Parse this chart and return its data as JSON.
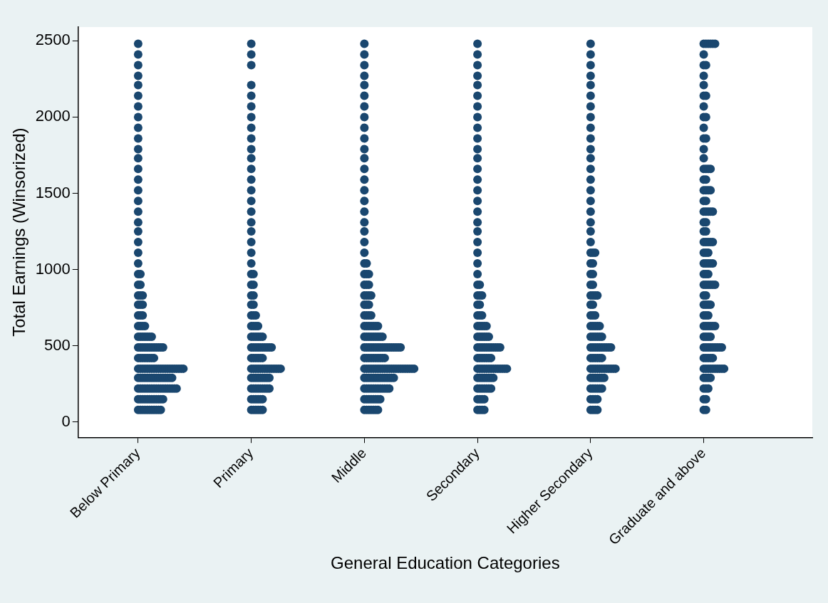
{
  "chart_data": {
    "type": "scatter",
    "xlabel": "General Education Categories",
    "ylabel": "Total Earnings (Winsorized)",
    "categories": [
      "Below Primary",
      "Primary",
      "Middle",
      "Secondary",
      "Higher Secondary",
      "Graduate and above"
    ],
    "ylim": [
      -100,
      2590
    ],
    "yticks": [
      0,
      500,
      1000,
      1500,
      2000,
      2500
    ],
    "marker": "circle",
    "series": [
      {
        "color": "#1a476f",
        "x": [
          "Below Primary",
          "Below Primary",
          "Below Primary",
          "Below Primary",
          "Below Primary",
          "Below Primary",
          "Below Primary",
          "Below Primary",
          "Below Primary",
          "Below Primary",
          "Below Primary",
          "Below Primary",
          "Below Primary",
          "Below Primary",
          "Below Primary",
          "Below Primary",
          "Below Primary",
          "Below Primary",
          "Below Primary",
          "Below Primary",
          "Below Primary",
          "Below Primary",
          "Below Primary",
          "Below Primary",
          "Below Primary",
          "Below Primary",
          "Below Primary",
          "Below Primary",
          "Below Primary",
          "Below Primary",
          "Below Primary",
          "Below Primary",
          "Below Primary",
          "Below Primary",
          "Below Primary",
          "Below Primary",
          "Below Primary",
          "Below Primary",
          "Below Primary",
          "Below Primary",
          "Below Primary",
          "Below Primary",
          "Below Primary",
          "Below Primary",
          "Below Primary",
          "Below Primary",
          "Below Primary",
          "Below Primary",
          "Below Primary",
          "Below Primary",
          "Below Primary",
          "Below Primary",
          "Below Primary",
          "Below Primary",
          "Below Primary",
          "Below Primary",
          "Below Primary",
          "Below Primary",
          "Below Primary",
          "Below Primary",
          "Below Primary",
          "Below Primary",
          "Below Primary",
          "Below Primary",
          "Below Primary",
          "Below Primary",
          "Below Primary",
          "Below Primary",
          "Below Primary",
          "Below Primary",
          "Below Primary",
          "Below Primary",
          "Below Primary",
          "Below Primary",
          "Below Primary",
          "Below Primary",
          "Below Primary",
          "Below Primary",
          "Below Primary",
          "Below Primary",
          "Below Primary",
          "Below Primary",
          "Below Primary",
          "Below Primary",
          "Below Primary",
          "Below Primary",
          "Below Primary",
          "Below Primary",
          "Below Primary",
          "Below Primary",
          "Below Primary",
          "Below Primary",
          "Below Primary",
          "Below Primary",
          "Below Primary",
          "Below Primary",
          "Below Primary",
          "Below Primary",
          "Below Primary",
          "Below Primary",
          "Below Primary",
          "Below Primary",
          "Below Primary",
          "Below Primary",
          "Below Primary",
          "Below Primary",
          "Below Primary",
          "Below Primary",
          "Below Primary",
          "Below Primary",
          "Below Primary",
          "Below Primary",
          "Below Primary",
          "Below Primary",
          "Below Primary",
          "Below Primary",
          "Below Primary",
          "Below Primary",
          "Below Primary",
          "Below Primary",
          "Below Primary",
          "Below Primary",
          "Below Primary",
          "Below Primary",
          "Below Primary",
          "Below Primary",
          "Below Primary",
          "Below Primary",
          "Below Primary",
          "Below Primary",
          "Below Primary",
          "Below Primary",
          "Below Primary",
          "Below Primary",
          "Below Primary",
          "Below Primary",
          "Below Primary",
          "Below Primary",
          "Below Primary",
          "Below Primary",
          "Below Primary",
          "Below Primary",
          "Below Primary",
          "Below Primary"
        ],
        "values": [
          80,
          80,
          80,
          80,
          80,
          80,
          80,
          80,
          80,
          80,
          80,
          150,
          150,
          150,
          150,
          150,
          150,
          150,
          150,
          150,
          150,
          150,
          150,
          220,
          220,
          220,
          220,
          220,
          220,
          220,
          220,
          220,
          220,
          220,
          220,
          220,
          220,
          220,
          220,
          220,
          220,
          290,
          290,
          290,
          290,
          290,
          290,
          290,
          290,
          290,
          290,
          290,
          290,
          290,
          290,
          290,
          290,
          350,
          350,
          350,
          350,
          350,
          350,
          350,
          350,
          350,
          350,
          350,
          350,
          350,
          350,
          350,
          350,
          350,
          350,
          350,
          350,
          350,
          420,
          420,
          420,
          420,
          420,
          420,
          420,
          420,
          490,
          490,
          490,
          490,
          490,
          490,
          490,
          490,
          490,
          490,
          490,
          490,
          560,
          560,
          560,
          560,
          560,
          560,
          560,
          630,
          630,
          630,
          630,
          700,
          700,
          700,
          770,
          770,
          770,
          830,
          830,
          830,
          900,
          900,
          970,
          970,
          1040,
          1110,
          1180,
          1250,
          1310,
          1380,
          1450,
          1520,
          1590,
          1660,
          1730,
          1790,
          1860,
          1930,
          2000,
          2070,
          2140,
          2210,
          2270,
          2340,
          2410,
          2480
        ]
      },
      {
        "color": "#1a476f",
        "x": [
          "Primary",
          "Primary",
          "Primary",
          "Primary",
          "Primary",
          "Primary",
          "Primary",
          "Primary",
          "Primary",
          "Primary",
          "Primary",
          "Primary",
          "Primary",
          "Primary",
          "Primary",
          "Primary",
          "Primary",
          "Primary",
          "Primary",
          "Primary",
          "Primary",
          "Primary",
          "Primary",
          "Primary",
          "Primary",
          "Primary",
          "Primary",
          "Primary",
          "Primary",
          "Primary",
          "Primary",
          "Primary",
          "Primary",
          "Primary",
          "Primary",
          "Primary",
          "Primary",
          "Primary",
          "Primary",
          "Primary",
          "Primary",
          "Primary",
          "Primary",
          "Primary",
          "Primary",
          "Primary",
          "Primary",
          "Primary",
          "Primary",
          "Primary",
          "Primary",
          "Primary",
          "Primary",
          "Primary",
          "Primary",
          "Primary",
          "Primary",
          "Primary",
          "Primary",
          "Primary",
          "Primary",
          "Primary",
          "Primary",
          "Primary",
          "Primary",
          "Primary",
          "Primary",
          "Primary",
          "Primary",
          "Primary",
          "Primary",
          "Primary",
          "Primary",
          "Primary",
          "Primary",
          "Primary",
          "Primary",
          "Primary",
          "Primary",
          "Primary",
          "Primary",
          "Primary",
          "Primary",
          "Primary",
          "Primary",
          "Primary",
          "Primary",
          "Primary",
          "Primary",
          "Primary",
          "Primary",
          "Primary",
          "Primary",
          "Primary",
          "Primary",
          "Primary",
          "Primary",
          "Primary",
          "Primary",
          "Primary",
          "Primary",
          "Primary"
        ],
        "values": [
          80,
          80,
          80,
          80,
          80,
          80,
          150,
          150,
          150,
          150,
          150,
          150,
          220,
          220,
          220,
          220,
          220,
          220,
          220,
          220,
          220,
          290,
          290,
          290,
          290,
          290,
          290,
          290,
          290,
          290,
          350,
          350,
          350,
          350,
          350,
          350,
          350,
          350,
          350,
          350,
          350,
          350,
          350,
          350,
          420,
          420,
          420,
          420,
          420,
          420,
          490,
          490,
          490,
          490,
          490,
          490,
          490,
          490,
          490,
          490,
          560,
          560,
          560,
          560,
          560,
          560,
          630,
          630,
          630,
          630,
          700,
          700,
          700,
          770,
          770,
          830,
          830,
          900,
          900,
          970,
          970,
          1040,
          1110,
          1180,
          1250,
          1310,
          1380,
          1450,
          1520,
          1590,
          1660,
          1730,
          1790,
          1860,
          1930,
          2000,
          2070,
          2140,
          2210,
          2340,
          2410,
          2480
        ]
      },
      {
        "color": "#1a476f",
        "x": [
          "Middle",
          "Middle",
          "Middle",
          "Middle",
          "Middle",
          "Middle",
          "Middle",
          "Middle",
          "Middle",
          "Middle",
          "Middle",
          "Middle",
          "Middle",
          "Middle",
          "Middle",
          "Middle",
          "Middle",
          "Middle",
          "Middle",
          "Middle",
          "Middle",
          "Middle",
          "Middle",
          "Middle",
          "Middle",
          "Middle",
          "Middle",
          "Middle",
          "Middle",
          "Middle",
          "Middle",
          "Middle",
          "Middle",
          "Middle",
          "Middle",
          "Middle",
          "Middle",
          "Middle",
          "Middle",
          "Middle",
          "Middle",
          "Middle",
          "Middle",
          "Middle",
          "Middle",
          "Middle",
          "Middle",
          "Middle",
          "Middle",
          "Middle",
          "Middle",
          "Middle",
          "Middle",
          "Middle",
          "Middle",
          "Middle",
          "Middle",
          "Middle",
          "Middle",
          "Middle",
          "Middle",
          "Middle",
          "Middle",
          "Middle",
          "Middle",
          "Middle",
          "Middle",
          "Middle",
          "Middle",
          "Middle",
          "Middle",
          "Middle",
          "Middle",
          "Middle",
          "Middle",
          "Middle",
          "Middle",
          "Middle",
          "Middle",
          "Middle",
          "Middle",
          "Middle",
          "Middle",
          "Middle",
          "Middle",
          "Middle",
          "Middle",
          "Middle",
          "Middle",
          "Middle",
          "Middle",
          "Middle",
          "Middle",
          "Middle",
          "Middle",
          "Middle",
          "Middle",
          "Middle",
          "Middle",
          "Middle",
          "Middle",
          "Middle",
          "Middle",
          "Middle",
          "Middle",
          "Middle",
          "Middle",
          "Middle",
          "Middle",
          "Middle",
          "Middle",
          "Middle",
          "Middle",
          "Middle",
          "Middle",
          "Middle",
          "Middle",
          "Middle",
          "Middle",
          "Middle",
          "Middle",
          "Middle",
          "Middle",
          "Middle",
          "Middle",
          "Middle",
          "Middle",
          "Middle",
          "Middle",
          "Middle",
          "Middle",
          "Middle",
          "Middle",
          "Middle",
          "Middle",
          "Middle",
          "Middle",
          "Middle",
          "Middle",
          "Middle",
          "Middle",
          "Middle",
          "Middle",
          "Middle",
          "Middle",
          "Middle",
          "Middle"
        ],
        "values": [
          80,
          80,
          80,
          80,
          80,
          80,
          80,
          150,
          150,
          150,
          150,
          150,
          150,
          150,
          150,
          220,
          220,
          220,
          220,
          220,
          220,
          220,
          220,
          220,
          220,
          220,
          220,
          290,
          290,
          290,
          290,
          290,
          290,
          290,
          290,
          290,
          290,
          290,
          290,
          290,
          290,
          350,
          350,
          350,
          350,
          350,
          350,
          350,
          350,
          350,
          350,
          350,
          350,
          350,
          350,
          350,
          350,
          350,
          350,
          350,
          350,
          350,
          350,
          350,
          420,
          420,
          420,
          420,
          420,
          420,
          420,
          420,
          420,
          420,
          490,
          490,
          490,
          490,
          490,
          490,
          490,
          490,
          490,
          490,
          490,
          490,
          490,
          490,
          490,
          490,
          490,
          560,
          560,
          560,
          560,
          560,
          560,
          560,
          560,
          560,
          630,
          630,
          630,
          630,
          630,
          630,
          630,
          700,
          700,
          700,
          700,
          770,
          770,
          770,
          830,
          830,
          830,
          830,
          900,
          900,
          900,
          970,
          970,
          970,
          1040,
          1040,
          1110,
          1180,
          1250,
          1310,
          1380,
          1450,
          1520,
          1590,
          1660,
          1730,
          1790,
          1860,
          1930,
          2000,
          2070,
          2140,
          2210,
          2270,
          2340,
          2410,
          2480
        ]
      },
      {
        "color": "#1a476f",
        "x": [
          "Secondary",
          "Secondary",
          "Secondary",
          "Secondary",
          "Secondary",
          "Secondary",
          "Secondary",
          "Secondary",
          "Secondary",
          "Secondary",
          "Secondary",
          "Secondary",
          "Secondary",
          "Secondary",
          "Secondary",
          "Secondary",
          "Secondary",
          "Secondary",
          "Secondary",
          "Secondary",
          "Secondary",
          "Secondary",
          "Secondary",
          "Secondary",
          "Secondary",
          "Secondary",
          "Secondary",
          "Secondary",
          "Secondary",
          "Secondary",
          "Secondary",
          "Secondary",
          "Secondary",
          "Secondary",
          "Secondary",
          "Secondary",
          "Secondary",
          "Secondary",
          "Secondary",
          "Secondary",
          "Secondary",
          "Secondary",
          "Secondary",
          "Secondary",
          "Secondary",
          "Secondary",
          "Secondary",
          "Secondary",
          "Secondary",
          "Secondary",
          "Secondary",
          "Secondary",
          "Secondary",
          "Secondary",
          "Secondary",
          "Secondary",
          "Secondary",
          "Secondary",
          "Secondary",
          "Secondary",
          "Secondary",
          "Secondary",
          "Secondary",
          "Secondary",
          "Secondary",
          "Secondary",
          "Secondary",
          "Secondary",
          "Secondary",
          "Secondary",
          "Secondary",
          "Secondary",
          "Secondary",
          "Secondary",
          "Secondary",
          "Secondary",
          "Secondary",
          "Secondary",
          "Secondary",
          "Secondary",
          "Secondary",
          "Secondary",
          "Secondary",
          "Secondary",
          "Secondary",
          "Secondary",
          "Secondary",
          "Secondary",
          "Secondary",
          "Secondary",
          "Secondary",
          "Secondary",
          "Secondary",
          "Secondary",
          "Secondary",
          "Secondary",
          "Secondary",
          "Secondary",
          "Secondary"
        ],
        "values": [
          80,
          80,
          80,
          80,
          150,
          150,
          150,
          150,
          220,
          220,
          220,
          220,
          220,
          220,
          220,
          290,
          290,
          290,
          290,
          290,
          290,
          290,
          290,
          350,
          350,
          350,
          350,
          350,
          350,
          350,
          350,
          350,
          350,
          350,
          350,
          350,
          350,
          420,
          420,
          420,
          420,
          420,
          420,
          420,
          490,
          490,
          490,
          490,
          490,
          490,
          490,
          490,
          490,
          490,
          490,
          560,
          560,
          560,
          560,
          560,
          560,
          630,
          630,
          630,
          630,
          630,
          700,
          700,
          700,
          770,
          770,
          830,
          830,
          830,
          900,
          900,
          970,
          1040,
          1110,
          1180,
          1250,
          1310,
          1380,
          1450,
          1520,
          1590,
          1660,
          1730,
          1790,
          1860,
          1930,
          2000,
          2070,
          2140,
          2210,
          2270,
          2340,
          2410,
          2480
        ]
      },
      {
        "color": "#1a476f",
        "x": [
          "Higher Secondary",
          "Higher Secondary",
          "Higher Secondary",
          "Higher Secondary",
          "Higher Secondary",
          "Higher Secondary",
          "Higher Secondary",
          "Higher Secondary",
          "Higher Secondary",
          "Higher Secondary",
          "Higher Secondary",
          "Higher Secondary",
          "Higher Secondary",
          "Higher Secondary",
          "Higher Secondary",
          "Higher Secondary",
          "Higher Secondary",
          "Higher Secondary",
          "Higher Secondary",
          "Higher Secondary",
          "Higher Secondary",
          "Higher Secondary",
          "Higher Secondary",
          "Higher Secondary",
          "Higher Secondary",
          "Higher Secondary",
          "Higher Secondary",
          "Higher Secondary",
          "Higher Secondary",
          "Higher Secondary",
          "Higher Secondary",
          "Higher Secondary",
          "Higher Secondary",
          "Higher Secondary",
          "Higher Secondary",
          "Higher Secondary",
          "Higher Secondary",
          "Higher Secondary",
          "Higher Secondary",
          "Higher Secondary",
          "Higher Secondary",
          "Higher Secondary",
          "Higher Secondary",
          "Higher Secondary",
          "Higher Secondary",
          "Higher Secondary",
          "Higher Secondary",
          "Higher Secondary",
          "Higher Secondary",
          "Higher Secondary",
          "Higher Secondary",
          "Higher Secondary",
          "Higher Secondary",
          "Higher Secondary",
          "Higher Secondary",
          "Higher Secondary",
          "Higher Secondary",
          "Higher Secondary",
          "Higher Secondary",
          "Higher Secondary",
          "Higher Secondary",
          "Higher Secondary",
          "Higher Secondary",
          "Higher Secondary",
          "Higher Secondary",
          "Higher Secondary",
          "Higher Secondary",
          "Higher Secondary",
          "Higher Secondary",
          "Higher Secondary",
          "Higher Secondary",
          "Higher Secondary",
          "Higher Secondary",
          "Higher Secondary",
          "Higher Secondary",
          "Higher Secondary",
          "Higher Secondary",
          "Higher Secondary",
          "Higher Secondary",
          "Higher Secondary",
          "Higher Secondary",
          "Higher Secondary",
          "Higher Secondary",
          "Higher Secondary",
          "Higher Secondary",
          "Higher Secondary",
          "Higher Secondary",
          "Higher Secondary",
          "Higher Secondary",
          "Higher Secondary",
          "Higher Secondary",
          "Higher Secondary",
          "Higher Secondary",
          "Higher Secondary",
          "Higher Secondary",
          "Higher Secondary",
          "Higher Secondary",
          "Higher Secondary"
        ],
        "values": [
          80,
          80,
          80,
          80,
          150,
          150,
          150,
          150,
          220,
          220,
          220,
          220,
          220,
          220,
          290,
          290,
          290,
          290,
          290,
          290,
          290,
          350,
          350,
          350,
          350,
          350,
          350,
          350,
          350,
          350,
          350,
          350,
          350,
          420,
          420,
          420,
          420,
          420,
          420,
          490,
          490,
          490,
          490,
          490,
          490,
          490,
          490,
          490,
          490,
          560,
          560,
          560,
          560,
          560,
          560,
          630,
          630,
          630,
          630,
          630,
          700,
          700,
          700,
          770,
          770,
          830,
          830,
          830,
          830,
          900,
          900,
          970,
          970,
          1040,
          1040,
          1110,
          1110,
          1110,
          1180,
          1250,
          1310,
          1380,
          1450,
          1520,
          1590,
          1660,
          1730,
          1790,
          1860,
          1930,
          2000,
          2070,
          2140,
          2210,
          2270,
          2340,
          2410,
          2480
        ]
      },
      {
        "color": "#1a476f",
        "x": [
          "Graduate and above",
          "Graduate and above",
          "Graduate and above",
          "Graduate and above",
          "Graduate and above",
          "Graduate and above",
          "Graduate and above",
          "Graduate and above",
          "Graduate and above",
          "Graduate and above",
          "Graduate and above",
          "Graduate and above",
          "Graduate and above",
          "Graduate and above",
          "Graduate and above",
          "Graduate and above",
          "Graduate and above",
          "Graduate and above",
          "Graduate and above",
          "Graduate and above",
          "Graduate and above",
          "Graduate and above",
          "Graduate and above",
          "Graduate and above",
          "Graduate and above",
          "Graduate and above",
          "Graduate and above",
          "Graduate and above",
          "Graduate and above",
          "Graduate and above",
          "Graduate and above",
          "Graduate and above",
          "Graduate and above",
          "Graduate and above",
          "Graduate and above",
          "Graduate and above",
          "Graduate and above",
          "Graduate and above",
          "Graduate and above",
          "Graduate and above",
          "Graduate and above",
          "Graduate and above",
          "Graduate and above",
          "Graduate and above",
          "Graduate and above",
          "Graduate and above",
          "Graduate and above",
          "Graduate and above",
          "Graduate and above",
          "Graduate and above",
          "Graduate and above",
          "Graduate and above",
          "Graduate and above",
          "Graduate and above",
          "Graduate and above",
          "Graduate and above",
          "Graduate and above",
          "Graduate and above",
          "Graduate and above",
          "Graduate and above",
          "Graduate and above",
          "Graduate and above",
          "Graduate and above",
          "Graduate and above",
          "Graduate and above",
          "Graduate and above",
          "Graduate and above",
          "Graduate and above",
          "Graduate and above",
          "Graduate and above",
          "Graduate and above",
          "Graduate and above",
          "Graduate and above",
          "Graduate and above",
          "Graduate and above",
          "Graduate and above",
          "Graduate and above",
          "Graduate and above",
          "Graduate and above",
          "Graduate and above",
          "Graduate and above",
          "Graduate and above",
          "Graduate and above",
          "Graduate and above",
          "Graduate and above",
          "Graduate and above",
          "Graduate and above",
          "Graduate and above",
          "Graduate and above",
          "Graduate and above",
          "Graduate and above",
          "Graduate and above",
          "Graduate and above",
          "Graduate and above",
          "Graduate and above",
          "Graduate and above",
          "Graduate and above",
          "Graduate and above",
          "Graduate and above",
          "Graduate and above",
          "Graduate and above",
          "Graduate and above",
          "Graduate and above",
          "Graduate and above",
          "Graduate and above",
          "Graduate and above",
          "Graduate and above",
          "Graduate and above",
          "Graduate and above",
          "Graduate and above",
          "Graduate and above",
          "Graduate and above",
          "Graduate and above",
          "Graduate and above",
          "Graduate and above",
          "Graduate and above",
          "Graduate and above",
          "Graduate and above"
        ],
        "values": [
          80,
          80,
          150,
          150,
          220,
          220,
          220,
          290,
          290,
          290,
          290,
          350,
          350,
          350,
          350,
          350,
          350,
          350,
          350,
          350,
          350,
          420,
          420,
          420,
          420,
          420,
          490,
          490,
          490,
          490,
          490,
          490,
          490,
          490,
          490,
          560,
          560,
          560,
          560,
          630,
          630,
          630,
          630,
          630,
          630,
          700,
          700,
          700,
          770,
          770,
          770,
          770,
          830,
          830,
          900,
          900,
          900,
          900,
          900,
          900,
          970,
          970,
          970,
          1040,
          1040,
          1040,
          1040,
          1040,
          1110,
          1110,
          1110,
          1180,
          1180,
          1180,
          1180,
          1180,
          1250,
          1250,
          1310,
          1310,
          1380,
          1380,
          1380,
          1380,
          1380,
          1450,
          1450,
          1520,
          1520,
          1520,
          1520,
          1590,
          1590,
          1660,
          1660,
          1660,
          1660,
          1730,
          1790,
          1860,
          1860,
          1930,
          2000,
          2000,
          2070,
          2140,
          2140,
          2210,
          2270,
          2340,
          2340,
          2410,
          2480,
          2480,
          2480,
          2480,
          2480,
          2480
        ]
      }
    ]
  }
}
